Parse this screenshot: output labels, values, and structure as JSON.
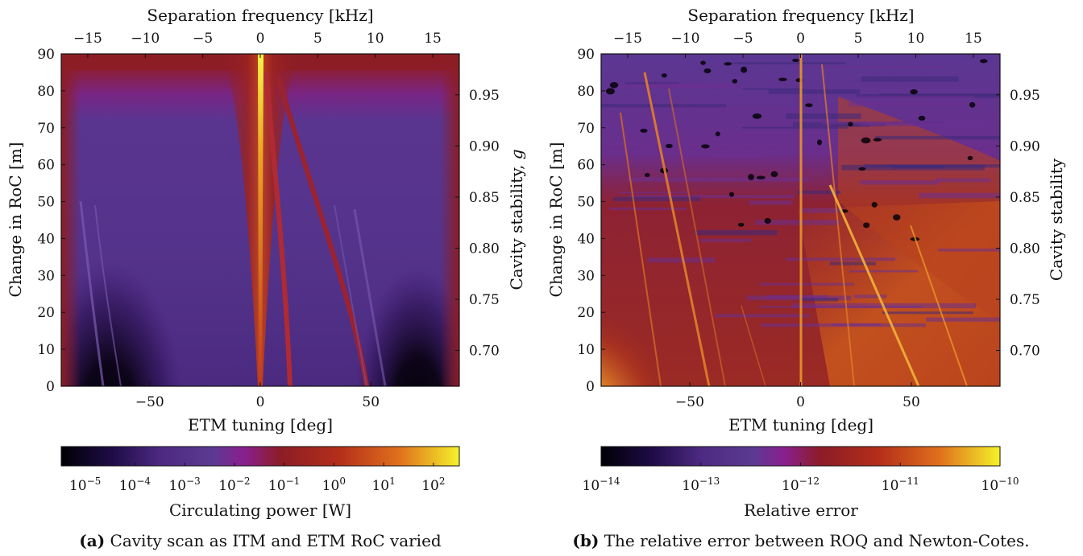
{
  "panels": [
    {
      "id": "a",
      "caption_tag": "(a)",
      "caption_text": "Cavity scan as ITM and ETM RoC varied",
      "chart_data": {
        "type": "heatmap",
        "xlabel": "ETM tuning [deg]",
        "ylabel": "Change in RoC [m]",
        "x2label": "Separation frequency [kHz]",
        "y2label": "Cavity stability, g",
        "xlim": [
          -90,
          90
        ],
        "ylim": [
          0,
          90
        ],
        "x_ticks": [
          -50,
          0,
          50
        ],
        "y_ticks": [
          0,
          10,
          20,
          30,
          40,
          50,
          60,
          70,
          80,
          90
        ],
        "x2_ticks": [
          -15,
          -10,
          -5,
          0,
          5,
          10,
          15
        ],
        "y2_ticks": [
          0.7,
          0.75,
          0.8,
          0.85,
          0.9,
          0.95
        ],
        "colorbar": {
          "label": "Circulating power [W]",
          "scale": "log",
          "colormap": "inferno",
          "tick_base": [
            "10",
            "10",
            "10",
            "10",
            "10",
            "10",
            "10",
            "10"
          ],
          "tick_exp": [
            "-5",
            "-4",
            "-3",
            "-2",
            "-1",
            "0",
            "1",
            "2"
          ],
          "tick_frac": [
            0.06,
            0.185,
            0.31,
            0.435,
            0.56,
            0.685,
            0.81,
            0.935
          ]
        },
        "features": "bright resonance at 0 deg; curved resonance lines near 12 and 48 deg; dark lobes at bottom corners"
      }
    },
    {
      "id": "b",
      "caption_tag": "(b)",
      "caption_text": "The relative error between ROQ and Newton-Cotes.",
      "chart_data": {
        "type": "heatmap",
        "xlabel": "ETM tuning [deg]",
        "ylabel": "Change in RoC [m]",
        "x2label": "Separation frequency [kHz]",
        "y2label": "Cavity stability",
        "xlim": [
          -90,
          90
        ],
        "ylim": [
          0,
          90
        ],
        "x_ticks": [
          -50,
          0,
          50
        ],
        "y_ticks": [
          0,
          10,
          20,
          30,
          40,
          50,
          60,
          70,
          80,
          90
        ],
        "x2_ticks": [
          -15,
          -10,
          -5,
          0,
          5,
          10,
          15
        ],
        "y2_ticks": [
          0.7,
          0.75,
          0.8,
          0.85,
          0.9,
          0.95
        ],
        "colorbar": {
          "label": "Relative error",
          "scale": "log",
          "colormap": "inferno",
          "tick_base": [
            "10",
            "10",
            "10",
            "10",
            "10"
          ],
          "tick_exp": [
            "-14",
            "-13",
            "-12",
            "-11",
            "-10"
          ],
          "tick_frac": [
            0.0,
            0.25,
            0.5,
            0.75,
            1.0
          ]
        },
        "features": "dark banded noise in upper half; orange diagonal stripes; bright lobe at lower-left corner"
      }
    }
  ]
}
